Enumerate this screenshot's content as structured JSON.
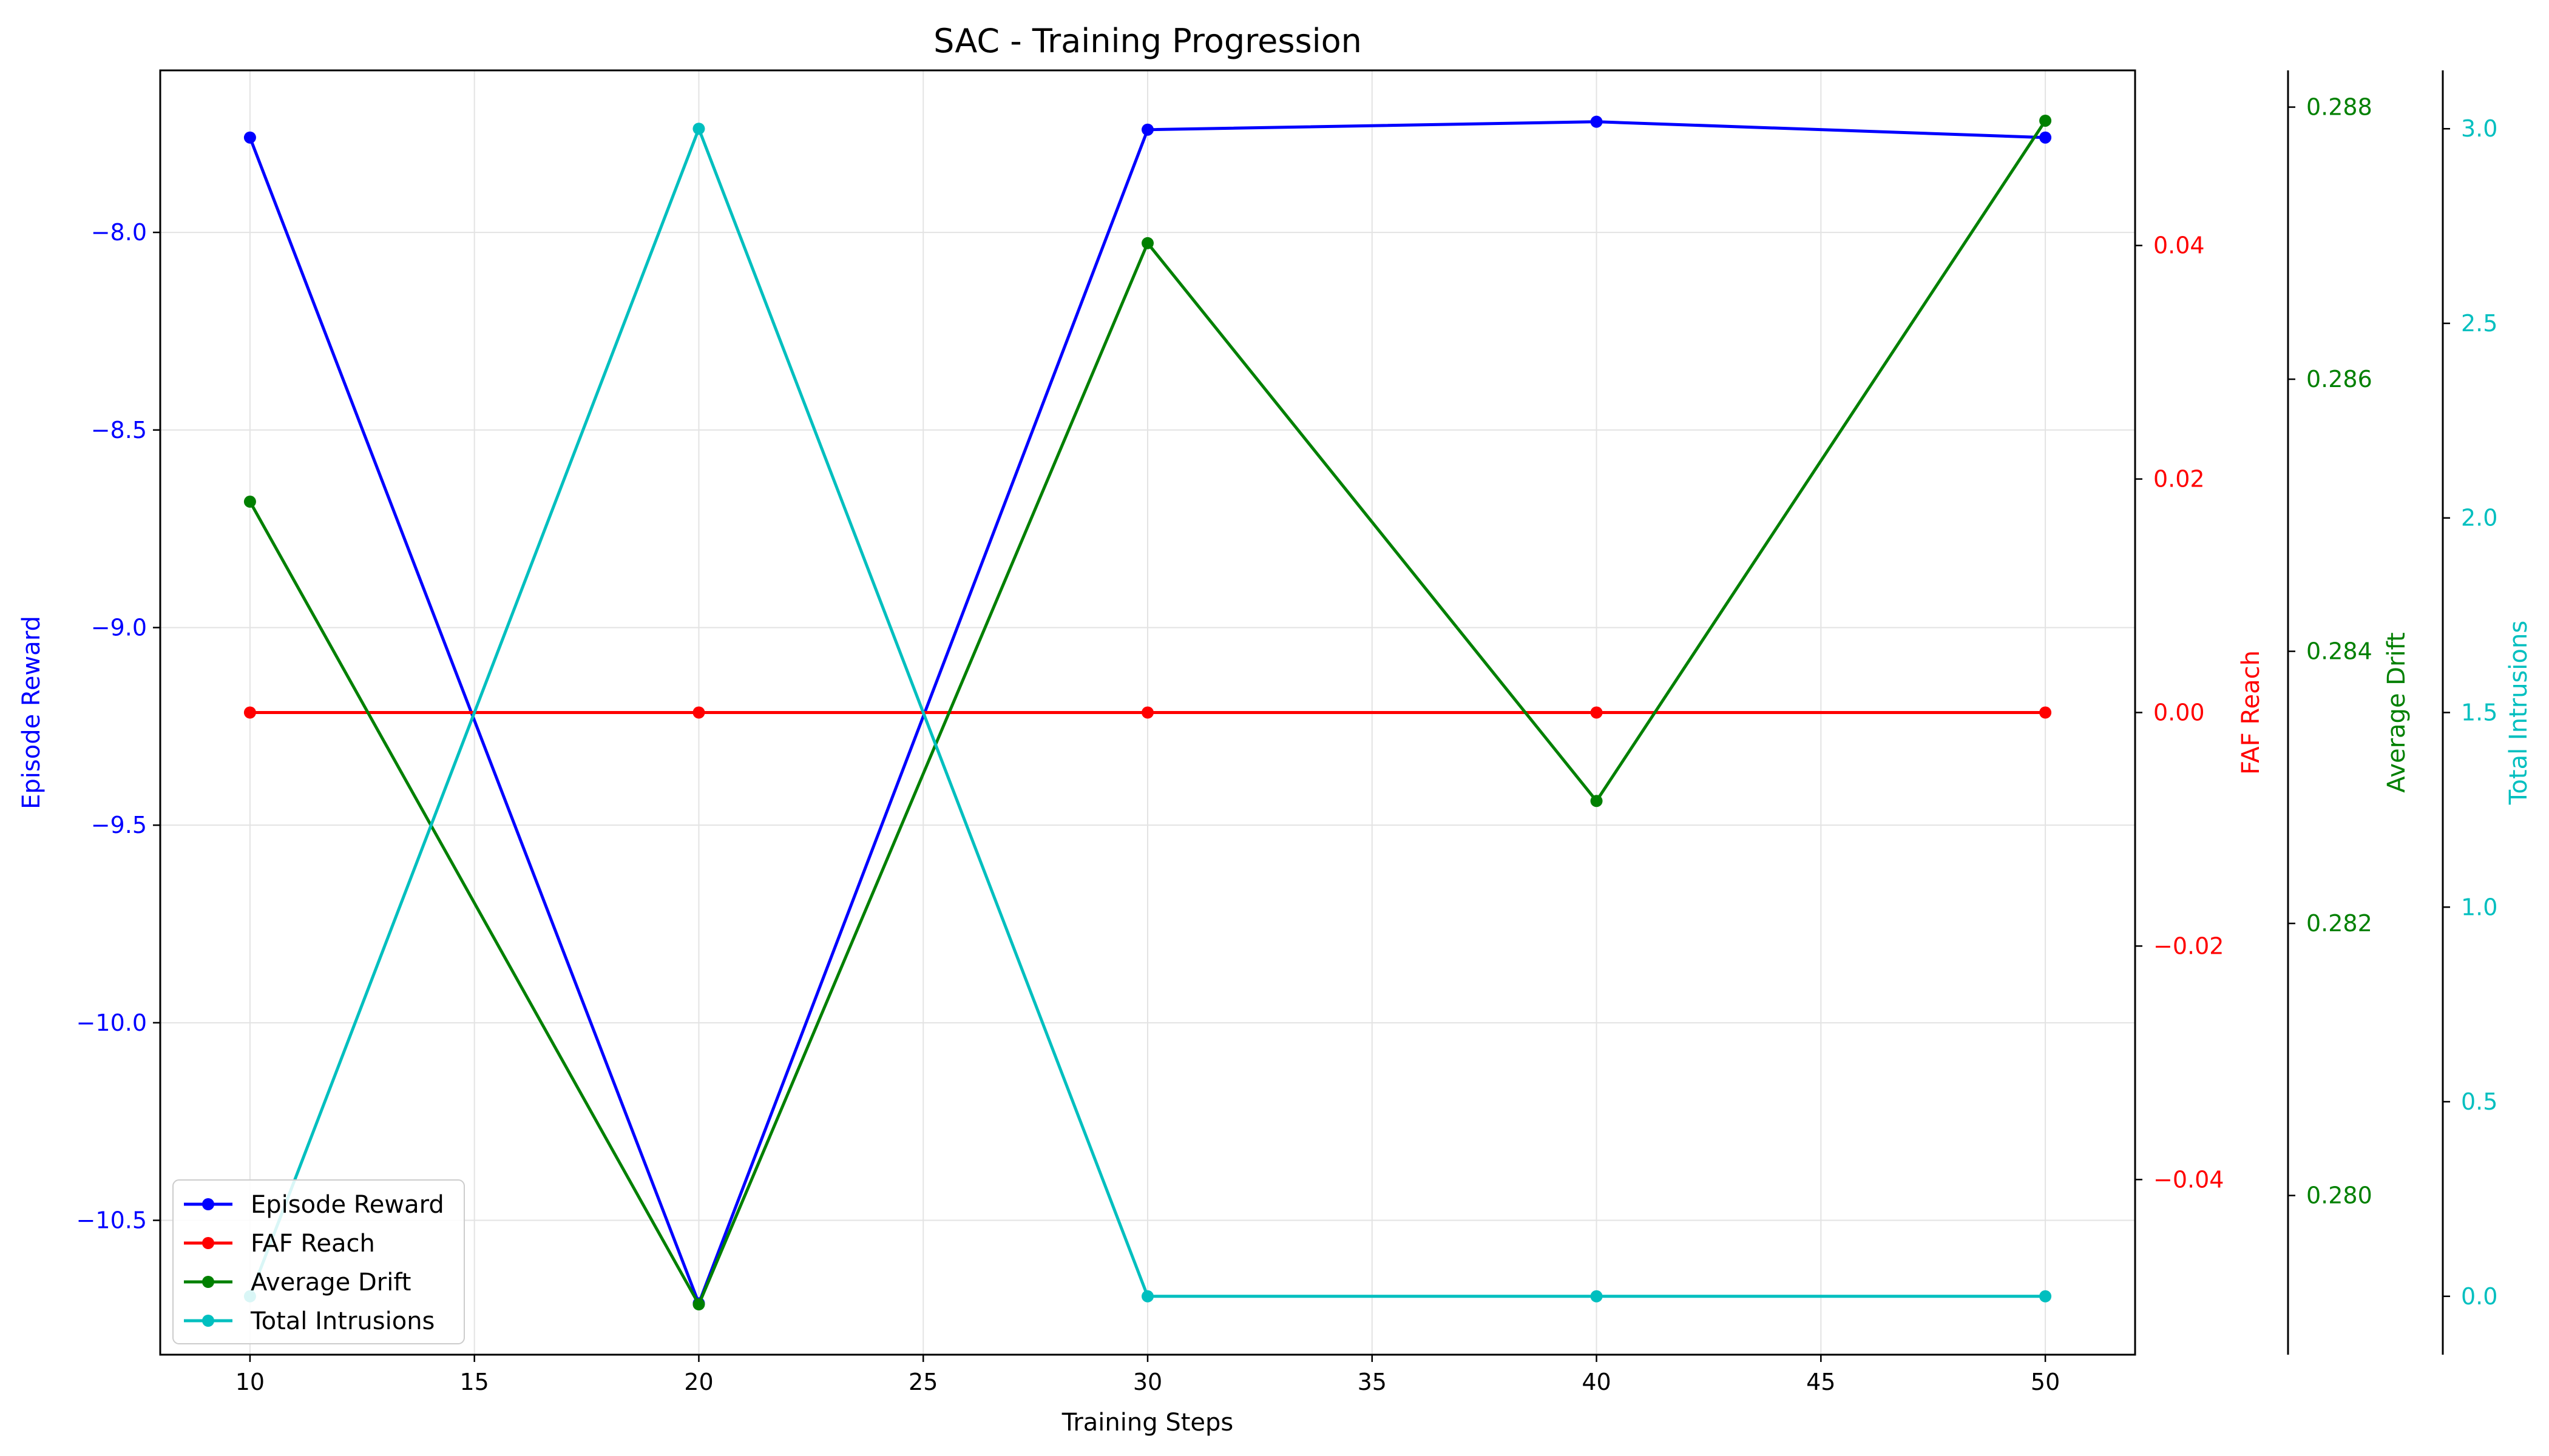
{
  "chart_data": {
    "type": "line",
    "title": "SAC - Training Progression",
    "xlabel": "Training Steps",
    "x": [
      10,
      20,
      30,
      40,
      50
    ],
    "xlim": [
      8,
      52
    ],
    "xticks": [
      10,
      15,
      20,
      25,
      30,
      35,
      40,
      45,
      50
    ],
    "grid": true,
    "legend_position": "lower-left",
    "series": [
      {
        "name": "Episode Reward",
        "axis_label": "Episode Reward",
        "color": "#0000ff",
        "values": [
          -7.76,
          -10.71,
          -7.74,
          -7.72,
          -7.76
        ],
        "ylim": [
          -10.84,
          -7.59
        ],
        "yticks": [
          -8.0,
          -8.5,
          -9.0,
          -9.5,
          -10.0,
          -10.5
        ],
        "tick_labels": [
          "−8.0",
          "−8.5",
          "−9.0",
          "−9.5",
          "−10.0",
          "−10.5"
        ]
      },
      {
        "name": "FAF Reach",
        "axis_label": "FAF Reach",
        "color": "#ff0000",
        "values": [
          0.0,
          0.0,
          0.0,
          0.0,
          0.0
        ],
        "ylim": [
          -0.055,
          0.055
        ],
        "yticks": [
          0.04,
          0.02,
          0.0,
          -0.02,
          -0.04
        ],
        "tick_labels": [
          "0.04",
          "0.02",
          "0.00",
          "−0.02",
          "−0.04"
        ]
      },
      {
        "name": "Average Drift",
        "axis_label": "Average Drift",
        "color": "#008000",
        "values": [
          0.2851,
          0.2792,
          0.287,
          0.2829,
          0.2879
        ],
        "ylim": [
          0.27883,
          0.28827
        ],
        "yticks": [
          0.288,
          0.286,
          0.284,
          0.282,
          0.28
        ],
        "tick_labels": [
          "0.288",
          "0.286",
          "0.284",
          "0.282",
          "0.280"
        ]
      },
      {
        "name": "Total Intrusions",
        "axis_label": "Total Intrusions",
        "color": "#00bfbf",
        "values": [
          0,
          3,
          0,
          0,
          0
        ],
        "ylim": [
          -0.15,
          3.15
        ],
        "yticks": [
          3.0,
          2.5,
          2.0,
          1.5,
          1.0,
          0.5,
          0.0
        ],
        "tick_labels": [
          "3.0",
          "2.5",
          "2.0",
          "1.5",
          "1.0",
          "0.5",
          "0.0"
        ]
      }
    ]
  }
}
